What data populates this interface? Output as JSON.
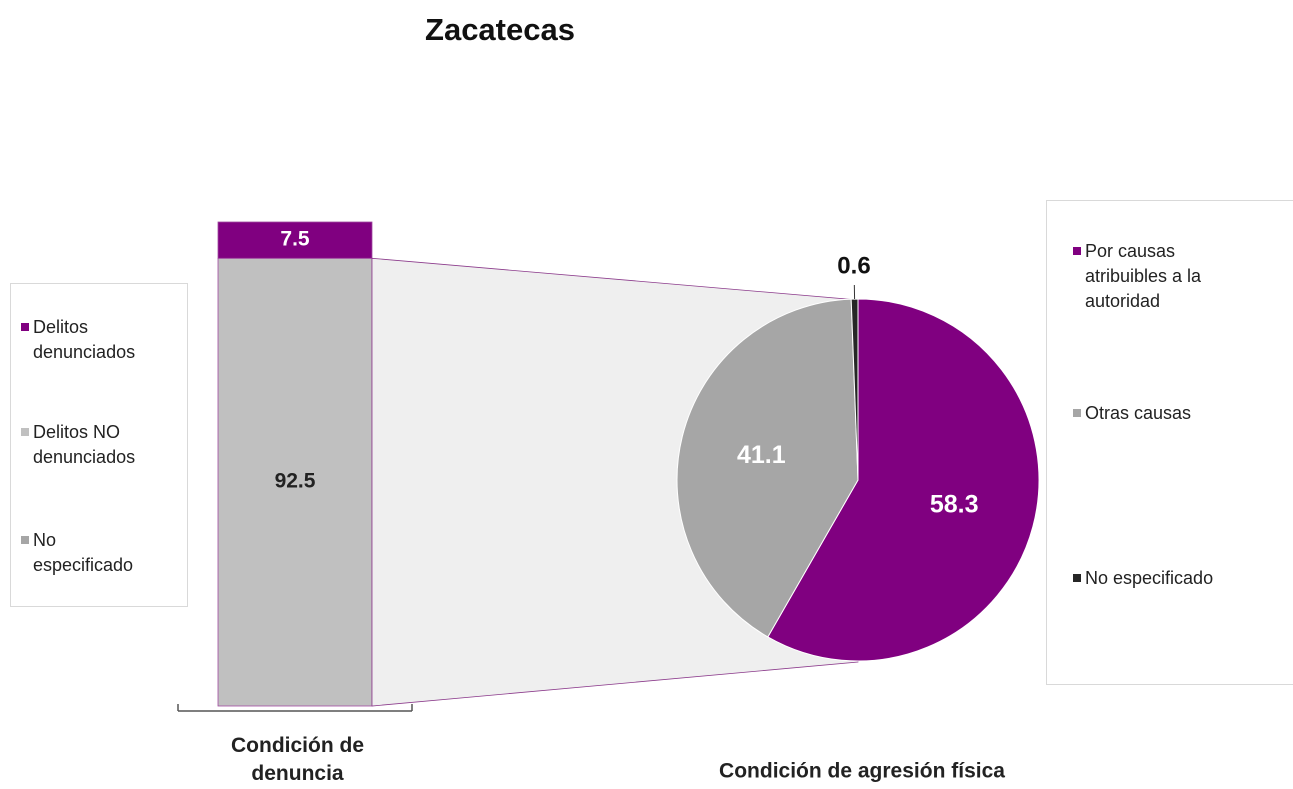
{
  "title": "Zacatecas",
  "chart_data": [
    {
      "type": "bar",
      "categories": [
        "Condición de denuncia"
      ],
      "ylim": [
        0,
        100
      ],
      "series": [
        {
          "name": "Delitos denunciados",
          "color": "#800080",
          "values": [
            7.5
          ]
        },
        {
          "name": "Delitos NO denunciados",
          "color": "#c0c0c0",
          "values": [
            92.5
          ]
        },
        {
          "name": "No especificado",
          "color": "#a6a6a6",
          "values": [
            0
          ]
        }
      ]
    },
    {
      "type": "pie",
      "title": "Condición de agresión física",
      "categories": [
        "Por causas atribuibles a la autoridad",
        "Otras causas",
        "No especificado"
      ],
      "values": [
        58.3,
        41.1,
        0.6
      ],
      "colors": [
        "#800080",
        "#a6a6a6",
        "#262626"
      ]
    }
  ]
}
